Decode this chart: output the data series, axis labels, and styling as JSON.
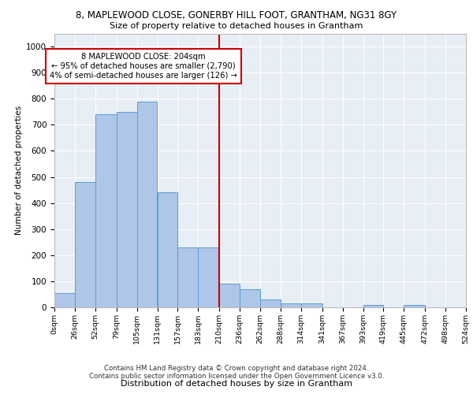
{
  "title_line1": "8, MAPLEWOOD CLOSE, GONERBY HILL FOOT, GRANTHAM, NG31 8GY",
  "title_line2": "Size of property relative to detached houses in Grantham",
  "xlabel": "Distribution of detached houses by size in Grantham",
  "ylabel": "Number of detached properties",
  "bin_edges": [
    0,
    26,
    52,
    79,
    105,
    131,
    157,
    183,
    210,
    236,
    262,
    288,
    314,
    341,
    367,
    393,
    419,
    445,
    472,
    498,
    524
  ],
  "bar_heights": [
    55,
    480,
    740,
    750,
    790,
    440,
    230,
    230,
    90,
    70,
    30,
    15,
    15,
    0,
    0,
    10,
    0,
    10,
    0,
    0
  ],
  "bar_color": "#aec6e8",
  "bar_edge_color": "#5a9fd4",
  "vline_x": 210,
  "vline_color": "#cc0000",
  "annotation_text": "8 MAPLEWOOD CLOSE: 204sqm\n← 95% of detached houses are smaller (2,790)\n4% of semi-detached houses are larger (126) →",
  "annotation_box_color": "#ffffff",
  "annotation_box_edge": "#cc0000",
  "ylim": [
    0,
    1050
  ],
  "yticks": [
    0,
    100,
    200,
    300,
    400,
    500,
    600,
    700,
    800,
    900,
    1000
  ],
  "background_color": "#e8eef5",
  "footer_line1": "Contains HM Land Registry data © Crown copyright and database right 2024.",
  "footer_line2": "Contains public sector information licensed under the Open Government Licence v3.0."
}
